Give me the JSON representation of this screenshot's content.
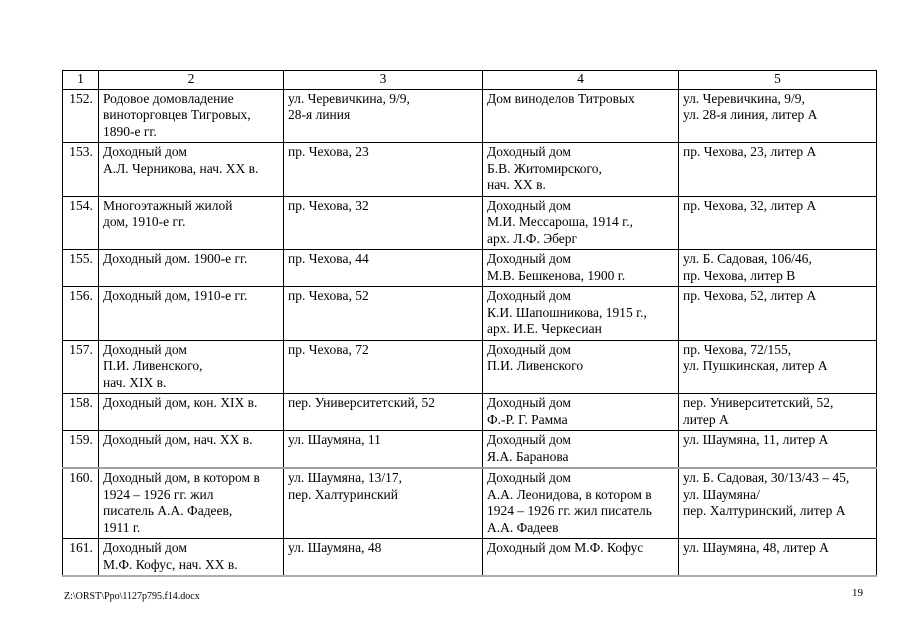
{
  "footer": {
    "file_path": "Z:\\ORST\\Ppo\\1127p795.f14.docx",
    "page_number": "19"
  },
  "table": {
    "headers": [
      "1",
      "2",
      "3",
      "4",
      "5"
    ],
    "rows": [
      {
        "num": "152.",
        "col2": "Родовое домовладение\nвиноторговцев Тигровых,\n1890-е гг.",
        "col3": "ул. Черевичкина, 9/9,\n28-я линия",
        "col4": "Дом виноделов Титровых",
        "col5": "ул. Черевичкина, 9/9,\nул. 28-я линия, литер А",
        "page_split": false
      },
      {
        "num": "153.",
        "col2": "Доходный дом\nА.Л. Черникова, нач. XX в.",
        "col3": "пр. Чехова, 23",
        "col4": "Доходный дом\nБ.В. Житомирского,\nнач. XX в.",
        "col5": "пр. Чехова, 23, литер А",
        "page_split": false
      },
      {
        "num": "154.",
        "col2": "Многоэтажный жилой\nдом, 1910-е гг.",
        "col3": "пр. Чехова, 32",
        "col4": "Доходный дом\nМ.И. Мессароша, 1914 г.,\nарх. Л.Ф. Эберг",
        "col5": "пр. Чехова, 32, литер А",
        "page_split": false
      },
      {
        "num": "155.",
        "col2": "Доходный дом. 1900-е гг.",
        "col3": "пр. Чехова, 44",
        "col4": "Доходный дом\nМ.В. Бешкенова, 1900 г.",
        "col5": "ул. Б. Садовая, 106/46,\nпр. Чехова, литер В",
        "page_split": false
      },
      {
        "num": "156.",
        "col2": "Доходный дом, 1910-е гг.",
        "col3": "пр. Чехова, 52",
        "col4": "Доходный дом\nК.И. Шапошникова, 1915 г.,\nарх. И.Е. Черкесиан",
        "col5": "пр. Чехова, 52, литер А",
        "page_split": false
      },
      {
        "num": "157.",
        "col2": "Доходный дом\nП.И. Ливенского,\nнач. XIX в.",
        "col3": "пр. Чехова, 72",
        "col4": "Доходный дом\nП.И. Ливенского",
        "col5": "пр. Чехова, 72/155,\nул. Пушкинская, литер А",
        "page_split": false
      },
      {
        "num": "158.",
        "col2": "Доходный дом, кон. XIX в.",
        "col3": "пер. Университетский, 52",
        "col4": "Доходный дом\nФ.-Р. Г. Рамма",
        "col5": "пер. Университетский, 52,\nлитер А",
        "page_split": false
      },
      {
        "num": "159.",
        "col2": "Доходный дом, нач. XX в.",
        "col3": "ул. Шаумяна, 11",
        "col4": "Доходный дом\nЯ.А. Баранова",
        "col5": "ул. Шаумяна, 11, литер А",
        "page_split": false
      },
      {
        "num": "160.",
        "col2": "Доходный дом, в котором в\n1924 – 1926 гг. жил\nписатель А.А. Фадеев,\n1911 г.",
        "col3": "ул. Шаумяна, 13/17,\nпер. Халтуринский",
        "col4": "Доходный дом\nА.А. Леонидова, в котором в\n1924 – 1926 гг. жил писатель\nА.А. Фадеев",
        "col5": "ул. Б. Садовая, 30/13/43 – 45,\nул. Шаумяна/\nпер. Халтуринский, литер А",
        "page_split": true
      },
      {
        "num": "161.",
        "col2": "Доходный дом\nМ.Ф. Кофус, нач. XX в.",
        "col3": "ул. Шаумяна, 48",
        "col4": "Доходный дом М.Ф. Кофус",
        "col5": "ул. Шаумяна, 48, литер А",
        "page_split": false
      }
    ]
  }
}
